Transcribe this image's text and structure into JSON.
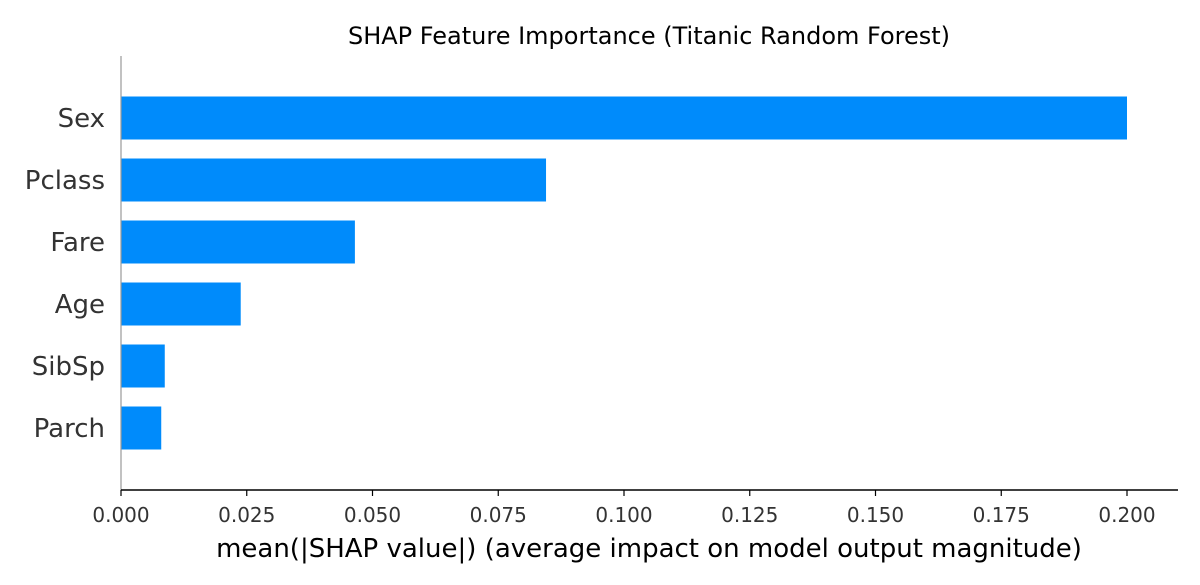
{
  "chart_data": {
    "type": "bar",
    "orientation": "horizontal",
    "title": "SHAP Feature Importance (Titanic Random Forest)",
    "xlabel": "mean(|SHAP value|) (average impact on model output magnitude)",
    "ylabel": "",
    "categories": [
      "Sex",
      "Pclass",
      "Fare",
      "Age",
      "SibSp",
      "Parch"
    ],
    "values": [
      0.2,
      0.0845,
      0.0465,
      0.0238,
      0.0087,
      0.008
    ],
    "xlim": [
      0,
      0.21
    ],
    "xticks": [
      0.0,
      0.025,
      0.05,
      0.075,
      0.1,
      0.125,
      0.15,
      0.175,
      0.2
    ],
    "xtick_labels": [
      "0.000",
      "0.025",
      "0.050",
      "0.075",
      "0.100",
      "0.125",
      "0.150",
      "0.175",
      "0.200"
    ],
    "grid": false,
    "bar_color": "#008bfb",
    "axis_color": "#000000",
    "left_spine_color": "#999999"
  }
}
